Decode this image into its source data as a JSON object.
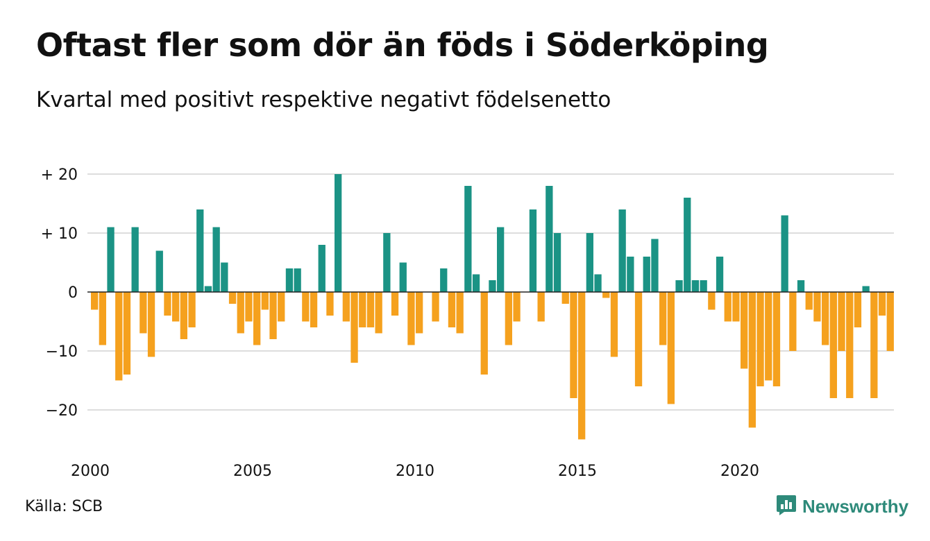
{
  "title": "Oftast fler som dör än föds i Söderköping",
  "subtitle": "Kvartal med positivt respektive negativt födelsenetto",
  "source": "Källa: SCB",
  "brand": "Newsworthy",
  "colors": {
    "positive": "#1b9385",
    "negative": "#f5a11e",
    "grid": "#dddddd",
    "zero": "#222222",
    "brand": "#2e8a7a"
  },
  "icons": {
    "brand_logo": "bar-chart-speech-bubble-icon"
  },
  "chart_data": {
    "type": "bar",
    "title": "Oftast fler som dör än föds i Söderköping",
    "subtitle": "Kvartal med positivt respektive negativt födelsenetto",
    "xlabel": "",
    "ylabel": "",
    "ylim": [
      -26,
      20
    ],
    "grid": true,
    "y_ticks": [
      {
        "value": 20,
        "label": "+ 20"
      },
      {
        "value": 10,
        "label": "+ 10"
      },
      {
        "value": 0,
        "label": "0"
      },
      {
        "value": -10,
        "label": "−10"
      },
      {
        "value": -20,
        "label": "−20"
      }
    ],
    "x_ticks": [
      {
        "value": 2000,
        "label": "2000"
      },
      {
        "value": 2005,
        "label": "2005"
      },
      {
        "value": 2010,
        "label": "2010"
      },
      {
        "value": 2015,
        "label": "2015"
      },
      {
        "value": 2020,
        "label": "2020"
      }
    ],
    "start_year": 2000,
    "periods": "quarterly",
    "values": [
      -3,
      -9,
      11,
      -15,
      -14,
      11,
      -7,
      -11,
      7,
      -4,
      -5,
      -8,
      -6,
      14,
      1,
      11,
      5,
      -2,
      -7,
      -5,
      -9,
      -3,
      -8,
      -5,
      4,
      4,
      -5,
      -6,
      8,
      -4,
      20,
      -5,
      -12,
      -6,
      -6,
      -7,
      10,
      -4,
      5,
      -9,
      -7,
      0,
      -5,
      4,
      -6,
      -7,
      18,
      3,
      -14,
      2,
      11,
      -9,
      -5,
      0,
      14,
      -5,
      18,
      10,
      -2,
      -18,
      -25,
      10,
      3,
      -1,
      -11,
      14,
      6,
      -16,
      6,
      9,
      -9,
      -19,
      2,
      16,
      2,
      2,
      -3,
      6,
      -5,
      -5,
      -13,
      -23,
      -16,
      -15,
      -16,
      13,
      -10,
      2,
      -3,
      -5,
      -9,
      -18,
      -10,
      -18,
      -6,
      1,
      -18,
      -4,
      -10
    ]
  }
}
